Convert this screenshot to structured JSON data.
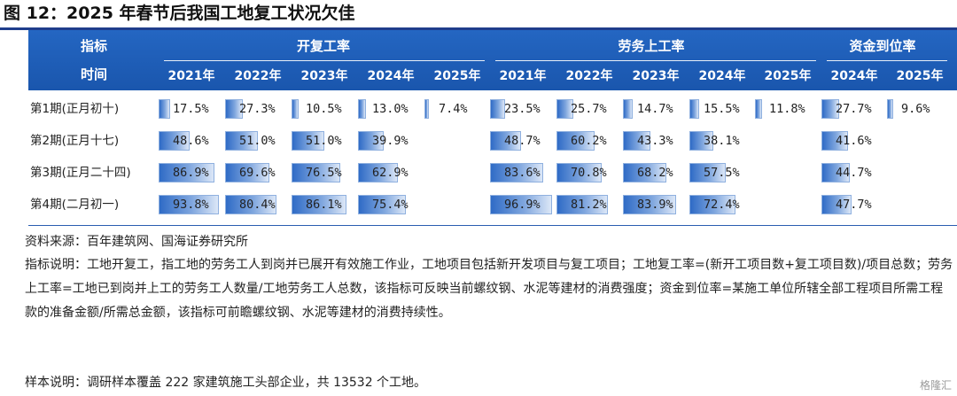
{
  "title": "图 12：2025 年春节后我国工地复工状况欠佳",
  "header": {
    "label_indicator": "指标",
    "label_time": "时间",
    "groups": [
      "开复工率",
      "劳务上工率",
      "资金到位率"
    ]
  },
  "chart_data": {
    "type": "table",
    "columns": [
      {
        "group": "开复工率",
        "year": "2021年"
      },
      {
        "group": "开复工率",
        "year": "2022年"
      },
      {
        "group": "开复工率",
        "year": "2023年"
      },
      {
        "group": "开复工率",
        "year": "2024年"
      },
      {
        "group": "开复工率",
        "year": "2025年"
      },
      {
        "group": "劳务上工率",
        "year": "2021年"
      },
      {
        "group": "劳务上工率",
        "year": "2022年"
      },
      {
        "group": "劳务上工率",
        "year": "2023年"
      },
      {
        "group": "劳务上工率",
        "year": "2024年"
      },
      {
        "group": "劳务上工率",
        "year": "2025年"
      },
      {
        "group": "资金到位率",
        "year": "2024年"
      },
      {
        "group": "资金到位率",
        "year": "2025年"
      }
    ],
    "rows": [
      {
        "label": "第1期(正月初十)",
        "values": [
          17.5,
          27.3,
          10.5,
          13.0,
          7.4,
          23.5,
          25.7,
          14.7,
          15.5,
          11.8,
          27.7,
          9.6
        ]
      },
      {
        "label": "第2期(正月十七)",
        "values": [
          48.6,
          51.0,
          51.0,
          39.9,
          null,
          48.7,
          60.2,
          43.3,
          38.1,
          null,
          41.6,
          null
        ]
      },
      {
        "label": "第3期(正月二十四)",
        "values": [
          86.9,
          69.6,
          76.5,
          62.9,
          null,
          83.6,
          70.8,
          68.2,
          57.5,
          null,
          44.7,
          null
        ]
      },
      {
        "label": "第4期(二月初一)",
        "values": [
          93.8,
          80.4,
          86.1,
          75.4,
          null,
          96.9,
          81.2,
          83.9,
          72.4,
          null,
          47.7,
          null
        ]
      }
    ],
    "unit": "%"
  },
  "notes": {
    "source": "资料来源：百年建筑网、国海证券研究所",
    "description": "指标说明：工地开复工，指工地的劳务工人到岗并已展开有效施工作业，工地项目包括新开发项目与复工项目；工地复工率=(新开工项目数+复工项目数)/项目总数；劳务上工率=工地已到岗并上工的劳务工人数量/工地劳务工人总数，该指标可反映当前螺纹钢、水泥等建材的消费强度；资金到位率=某施工单位所辖全部工程项目所需工程款的准备金额/所需总金额，该指标可前瞻螺纹钢、水泥等建材的消费持续性。",
    "sample": "样本说明：调研样本覆盖 222 家建筑施工头部企业，共 13532 个工地。"
  },
  "watermark": "格隆汇"
}
